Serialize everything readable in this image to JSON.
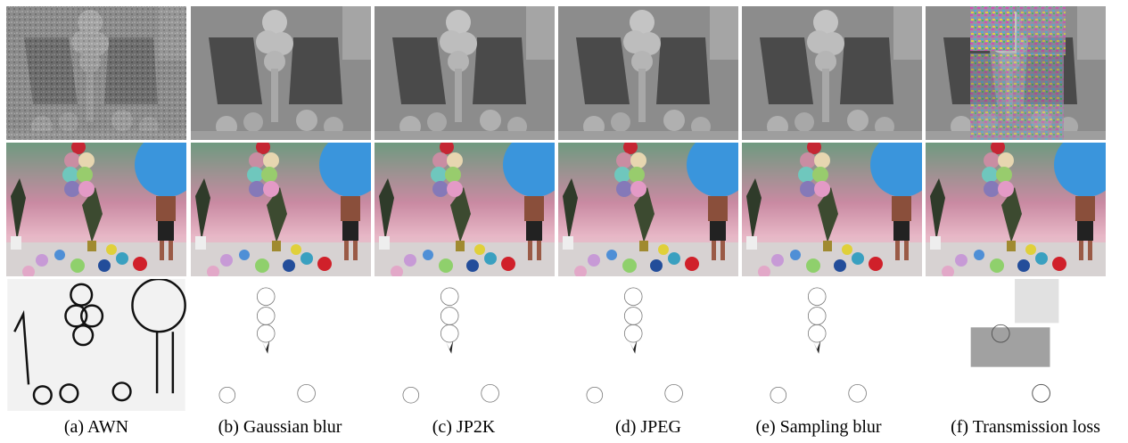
{
  "figure": {
    "captions": [
      "(a) AWN",
      "(b) Gaussian blur",
      "(c) JP2K",
      "(d) JPEG",
      "(e) Sampling blur",
      "(f) Transmission loss"
    ]
  }
}
